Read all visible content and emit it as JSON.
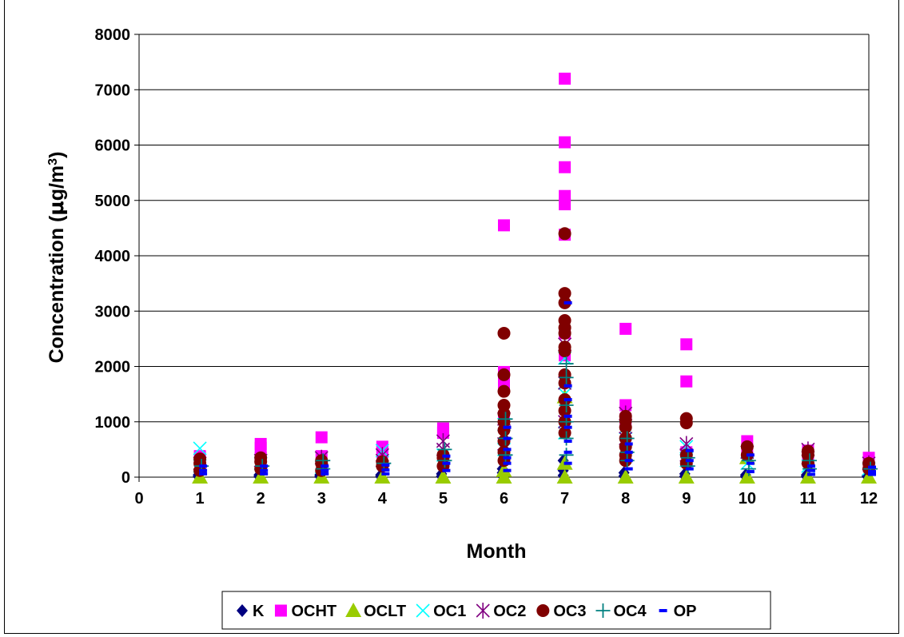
{
  "chart_data": {
    "type": "scatter",
    "title": "",
    "xlabel": "Month",
    "ylabel_main": "Concentration (",
    "ylabel_mu": "μ",
    "ylabel_unit": "g/m",
    "ylabel_sup": "3",
    "ylabel_close": ")",
    "xlim": [
      0,
      12
    ],
    "ylim": [
      0,
      8000
    ],
    "x_ticks": [
      "0",
      "1",
      "2",
      "3",
      "4",
      "5",
      "6",
      "7",
      "8",
      "9",
      "10",
      "11",
      "12"
    ],
    "y_ticks": [
      "0",
      "1000",
      "2000",
      "3000",
      "4000",
      "5000",
      "6000",
      "7000",
      "8000"
    ],
    "grid": "horizontal",
    "legend_position": "bottom",
    "series": [
      {
        "name": "K",
        "marker": "diamond",
        "color": "#000080",
        "x": [
          1,
          1,
          2,
          2,
          3,
          3,
          4,
          4,
          5,
          5,
          6,
          6,
          6,
          7,
          7,
          7,
          8,
          8,
          9,
          9,
          10,
          10,
          11,
          11,
          12,
          12
        ],
        "y": [
          10,
          40,
          10,
          40,
          10,
          40,
          10,
          40,
          15,
          60,
          20,
          80,
          150,
          30,
          120,
          300,
          20,
          80,
          15,
          60,
          10,
          40,
          10,
          40,
          10,
          30
        ]
      },
      {
        "name": "OCHT",
        "marker": "square",
        "color": "#FF00FF",
        "x": [
          1,
          1,
          2,
          2,
          2,
          3,
          3,
          4,
          4,
          5,
          5,
          6,
          6,
          6,
          6,
          7,
          7,
          7,
          7,
          7,
          7,
          7,
          7,
          8,
          8,
          8,
          9,
          9,
          9,
          10,
          10,
          11,
          11,
          12,
          12
        ],
        "y": [
          380,
          300,
          600,
          530,
          350,
          720,
          380,
          550,
          450,
          880,
          800,
          4550,
          1900,
          1700,
          1050,
          7200,
          6050,
          5600,
          5080,
          4930,
          4380,
          2600,
          2200,
          2680,
          1300,
          1050,
          2400,
          1730,
          450,
          650,
          500,
          480,
          350,
          350,
          200
        ]
      },
      {
        "name": "OCLT",
        "marker": "triangle",
        "color": "#99CC00",
        "x": [
          1,
          2,
          3,
          4,
          5,
          6,
          6,
          7,
          7,
          7,
          8,
          9,
          10,
          10,
          11,
          12
        ],
        "y": [
          0,
          0,
          0,
          0,
          0,
          0,
          120,
          0,
          1450,
          250,
          0,
          0,
          0,
          350,
          0,
          0
        ]
      },
      {
        "name": "OC1",
        "marker": "x",
        "color": "#00FFFF",
        "x": [
          1,
          1,
          2,
          3,
          4,
          5,
          6,
          6,
          7,
          7,
          7,
          8,
          9,
          9,
          10,
          11,
          12
        ],
        "y": [
          520,
          200,
          250,
          180,
          480,
          400,
          950,
          500,
          2150,
          1500,
          800,
          900,
          550,
          300,
          250,
          200,
          150
        ]
      },
      {
        "name": "OC2",
        "marker": "star",
        "color": "#800080",
        "x": [
          1,
          2,
          3,
          4,
          4,
          5,
          5,
          6,
          6,
          7,
          7,
          7,
          8,
          8,
          9,
          9,
          10,
          11,
          11,
          12
        ],
        "y": [
          250,
          300,
          350,
          400,
          300,
          650,
          500,
          1050,
          600,
          2400,
          1700,
          1000,
          1150,
          700,
          600,
          400,
          450,
          500,
          350,
          250
        ]
      },
      {
        "name": "OC3",
        "marker": "circle",
        "color": "#800000",
        "x": [
          1,
          1,
          1,
          2,
          2,
          2,
          3,
          3,
          3,
          4,
          4,
          5,
          5,
          5,
          6,
          6,
          6,
          6,
          6,
          6,
          6,
          6,
          6,
          6,
          7,
          7,
          7,
          7,
          7,
          7,
          7,
          7,
          7,
          7,
          7,
          7,
          7,
          7,
          8,
          8,
          8,
          8,
          8,
          8,
          8,
          9,
          9,
          9,
          9,
          10,
          10,
          11,
          11,
          11,
          12,
          12
        ],
        "y": [
          330,
          250,
          120,
          350,
          280,
          150,
          300,
          250,
          120,
          280,
          200,
          400,
          350,
          200,
          2600,
          1850,
          1550,
          1300,
          1150,
          1000,
          850,
          650,
          450,
          300,
          4400,
          3320,
          3150,
          2830,
          2700,
          2600,
          2350,
          2280,
          1850,
          1700,
          1400,
          1200,
          1000,
          800,
          1100,
          1020,
          900,
          700,
          550,
          400,
          300,
          1060,
          980,
          400,
          250,
          550,
          400,
          470,
          400,
          250,
          250,
          150
        ]
      },
      {
        "name": "OC4",
        "marker": "plus",
        "color": "#008080",
        "x": [
          1,
          2,
          3,
          3,
          4,
          5,
          5,
          6,
          6,
          6,
          7,
          7,
          7,
          7,
          7,
          7,
          8,
          8,
          8,
          9,
          9,
          10,
          10,
          11,
          11,
          12
        ],
        "y": [
          200,
          200,
          300,
          150,
          250,
          500,
          300,
          1050,
          700,
          400,
          2050,
          1800,
          1300,
          1000,
          700,
          400,
          700,
          450,
          300,
          350,
          200,
          300,
          150,
          300,
          150,
          150
        ]
      },
      {
        "name": "OP",
        "marker": "dash",
        "color": "#0000FF",
        "x": [
          1,
          1,
          1,
          2,
          2,
          2,
          3,
          3,
          3,
          4,
          4,
          4,
          5,
          5,
          5,
          6,
          6,
          6,
          6,
          6,
          6,
          7,
          7,
          7,
          7,
          7,
          7,
          7,
          7,
          8,
          8,
          8,
          8,
          9,
          9,
          9,
          10,
          10,
          10,
          11,
          11,
          11,
          12,
          12,
          12
        ],
        "y": [
          200,
          120,
          60,
          200,
          120,
          60,
          200,
          120,
          60,
          220,
          130,
          60,
          380,
          250,
          120,
          900,
          700,
          500,
          350,
          250,
          120,
          3150,
          1650,
          1400,
          1100,
          900,
          650,
          450,
          250,
          600,
          450,
          300,
          150,
          480,
          300,
          150,
          400,
          250,
          100,
          200,
          120,
          50,
          180,
          100,
          50
        ]
      }
    ]
  }
}
